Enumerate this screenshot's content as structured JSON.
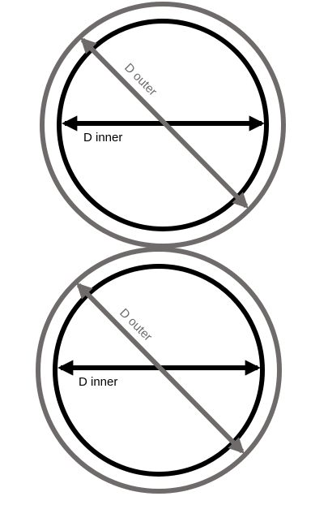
{
  "colors": {
    "outer": "#6f6b6b",
    "inner": "#000000",
    "background": "#ffffff"
  },
  "figures": [
    {
      "inner_label": "D inner",
      "outer_label": "D outer"
    },
    {
      "inner_label": "D inner",
      "outer_label": "D outer"
    }
  ]
}
